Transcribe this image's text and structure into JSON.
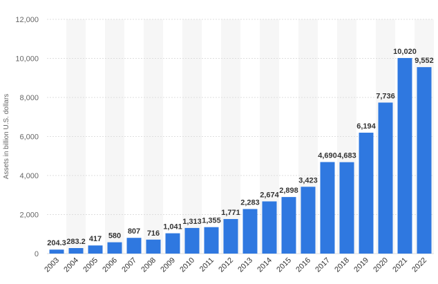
{
  "chart_data": {
    "type": "bar",
    "ylabel": "Assets in billion U.S. dollars",
    "xlabel": "",
    "title": "",
    "categories": [
      "2003",
      "2004",
      "2005",
      "2006",
      "2007",
      "2008",
      "2009",
      "2010",
      "2011",
      "2012",
      "2013",
      "2014",
      "2015",
      "2016",
      "2017",
      "2018",
      "2019",
      "2020",
      "2021",
      "2022"
    ],
    "values": [
      204.3,
      283.2,
      417,
      580,
      807,
      716,
      1041,
      1313,
      1355,
      1771,
      2283,
      2674,
      2898,
      3423,
      4690,
      4683,
      6194,
      7736,
      10020,
      9552
    ],
    "value_labels": [
      "204.3",
      "283.2",
      "417",
      "580",
      "807",
      "716",
      "1,041",
      "1,313",
      "1,355",
      "1,771",
      "2,283",
      "2,674",
      "2,898",
      "3,423",
      "4,690",
      "4,683",
      "6,194",
      "7,736",
      "10,020",
      "9,552"
    ],
    "ylim": [
      0,
      12000
    ],
    "y_ticks": [
      0,
      2000,
      4000,
      6000,
      8000,
      10000,
      12000
    ],
    "y_tick_labels": [
      "0",
      "2,000",
      "4,000",
      "6,000",
      "8,000",
      "10,000",
      "12,000"
    ],
    "grid": true,
    "colors": {
      "bar": "#2f78e0",
      "grid": "#dddddd",
      "band": "#f6f6f6"
    }
  }
}
